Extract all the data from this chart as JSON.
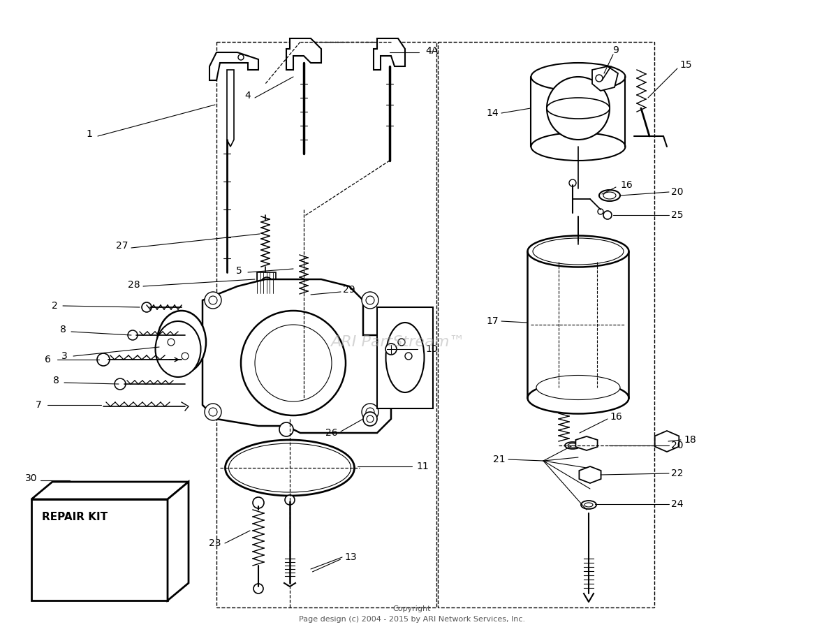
{
  "copyright_line1": "Copyright",
  "copyright_line2": "Page design (c) 2004 - 2015 by ARI Network Services, Inc.",
  "watermark": "ARI PartStream™",
  "bg": "#ffffff",
  "lc": "#000000",
  "lw_main": 1.2,
  "lw_thin": 0.7,
  "label_fs": 10,
  "fig_w": 11.8,
  "fig_h": 9.08
}
